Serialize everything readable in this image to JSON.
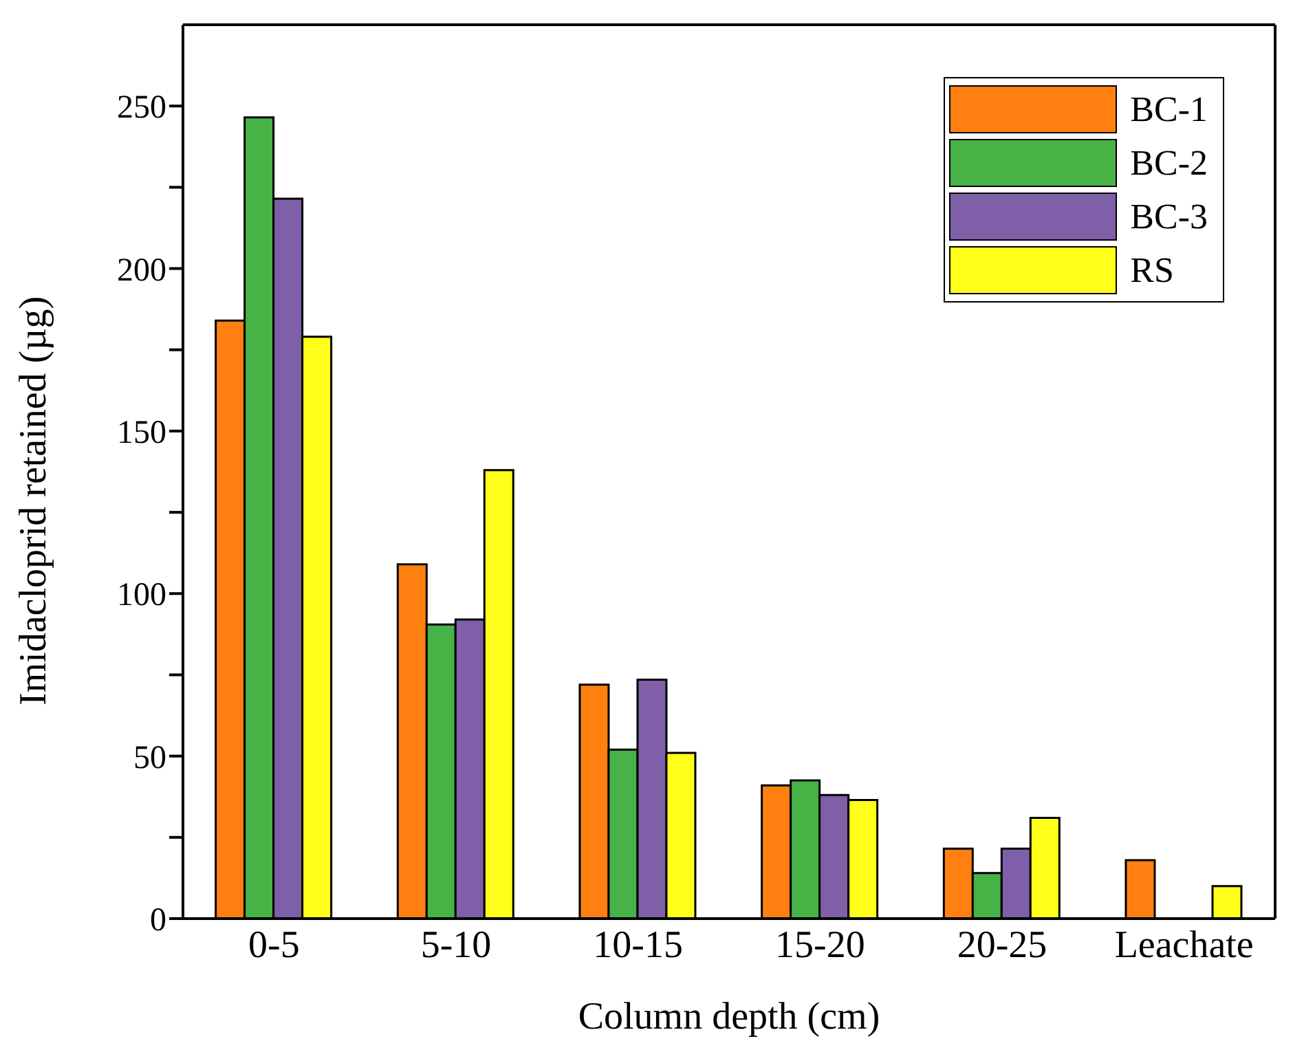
{
  "chart_data": {
    "type": "bar",
    "xlabel": "Column depth (cm)",
    "ylabel": "Imidacloprid retained (µg)",
    "categories": [
      "0-5",
      "5-10",
      "10-15",
      "15-20",
      "20-25",
      "Leachate"
    ],
    "series": [
      {
        "name": "BC-1",
        "color": "#ff8011",
        "values": [
          184,
          109,
          72,
          41,
          21.5,
          18
        ]
      },
      {
        "name": "BC-2",
        "color": "#47b347",
        "values": [
          246.5,
          90.5,
          52,
          42.5,
          14,
          0
        ]
      },
      {
        "name": "BC-3",
        "color": "#7f5fa8",
        "values": [
          221.5,
          92,
          73.5,
          38,
          21.5,
          0
        ]
      },
      {
        "name": "RS",
        "color": "#ffff19",
        "values": [
          179,
          138,
          51,
          36.5,
          31,
          10
        ]
      }
    ],
    "ylim": [
      0,
      275
    ],
    "yticks": [
      0,
      {
        "value": 25,
        "label": null
      },
      50,
      {
        "value": 75,
        "label": null
      },
      100,
      {
        "value": 125,
        "label": null
      },
      150,
      {
        "value": 175,
        "label": null
      },
      200,
      {
        "value": 225,
        "label": null
      },
      250
    ],
    "grid": false,
    "legend": "top right"
  }
}
